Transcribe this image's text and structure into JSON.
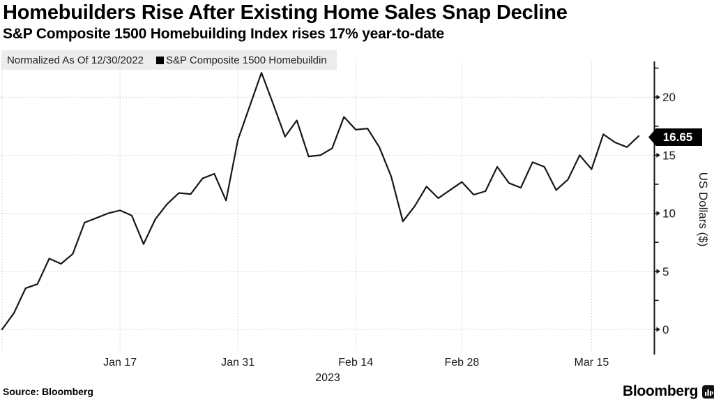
{
  "header": {
    "title": "Homebuilders Rise After Existing Home Sales Snap Decline",
    "subtitle": "S&P Composite 1500 Homebuilding Index rises 17% year-to-date"
  },
  "legend": {
    "normalized": "Normalized As Of 12/30/2022",
    "series": "S&P Composite 1500 Homebuildin",
    "swatch_color": "#000000"
  },
  "footer": {
    "source": "Source: Bloomberg",
    "brand": "Bloomberg"
  },
  "colors": {
    "line": "#161616",
    "grid": "#c9c9c9",
    "legend_bg": "#ececec",
    "badge_bg": "#000000",
    "badge_text": "#ffffff",
    "background": "#ffffff"
  },
  "chart_data": {
    "type": "line",
    "title": "Homebuilders Rise After Existing Home Sales Snap Decline",
    "subtitle": "S&P Composite 1500 Homebuilding Index rises 17% year-to-date",
    "series_name": "S&P Composite 1500 Homebuilding Index (normalized as of 12/30/2022)",
    "xlabel": "",
    "ylabel": "US Dollars ($)",
    "year_label": "2023",
    "last_value_label": "16.65",
    "ylim": [
      -2.2,
      23.1
    ],
    "grid": true,
    "legend_position": "top-left",
    "axis_side": "right",
    "y_ticks": [
      0,
      5,
      10,
      15,
      20
    ],
    "y_minor_ticks": [
      2.5,
      7.5,
      12.5,
      17.5,
      22.5
    ],
    "x_ticks": [
      {
        "label": "Jan 17",
        "index": 10
      },
      {
        "label": "Jan 31",
        "index": 20
      },
      {
        "label": "Feb 14",
        "index": 30
      },
      {
        "label": "Feb 28",
        "index": 39
      },
      {
        "label": "Mar 15",
        "index": 50
      }
    ],
    "x_gridline_indices": [
      0,
      10,
      20,
      30,
      39,
      50
    ],
    "dates": [
      "2022-12-30",
      "2023-01-03",
      "2023-01-04",
      "2023-01-05",
      "2023-01-06",
      "2023-01-09",
      "2023-01-10",
      "2023-01-11",
      "2023-01-12",
      "2023-01-13",
      "2023-01-17",
      "2023-01-18",
      "2023-01-19",
      "2023-01-20",
      "2023-01-23",
      "2023-01-24",
      "2023-01-25",
      "2023-01-26",
      "2023-01-27",
      "2023-01-30",
      "2023-01-31",
      "2023-02-01",
      "2023-02-02",
      "2023-02-03",
      "2023-02-06",
      "2023-02-07",
      "2023-02-08",
      "2023-02-09",
      "2023-02-10",
      "2023-02-13",
      "2023-02-14",
      "2023-02-15",
      "2023-02-16",
      "2023-02-17",
      "2023-02-21",
      "2023-02-22",
      "2023-02-23",
      "2023-02-24",
      "2023-02-27",
      "2023-02-28",
      "2023-03-01",
      "2023-03-02",
      "2023-03-03",
      "2023-03-06",
      "2023-03-07",
      "2023-03-08",
      "2023-03-09",
      "2023-03-10",
      "2023-03-13",
      "2023-03-14",
      "2023-03-15",
      "2023-03-16",
      "2023-03-17",
      "2023-03-20",
      "2023-03-21"
    ],
    "values": [
      0,
      1.4,
      3.55,
      3.9,
      6.1,
      5.65,
      6.5,
      9.2,
      9.6,
      10.0,
      10.25,
      9.8,
      7.35,
      9.5,
      10.8,
      11.75,
      11.65,
      13.0,
      13.4,
      11.1,
      16.3,
      19.2,
      22.1,
      19.4,
      16.6,
      18.0,
      14.9,
      15.0,
      15.6,
      18.3,
      17.2,
      17.3,
      15.7,
      13.2,
      9.3,
      10.6,
      12.3,
      11.3,
      12.0,
      12.7,
      11.6,
      11.9,
      14.0,
      12.6,
      12.2,
      14.4,
      14.0,
      12.0,
      12.9,
      15.0,
      13.8,
      16.8,
      16.1,
      15.7,
      16.65
    ]
  }
}
